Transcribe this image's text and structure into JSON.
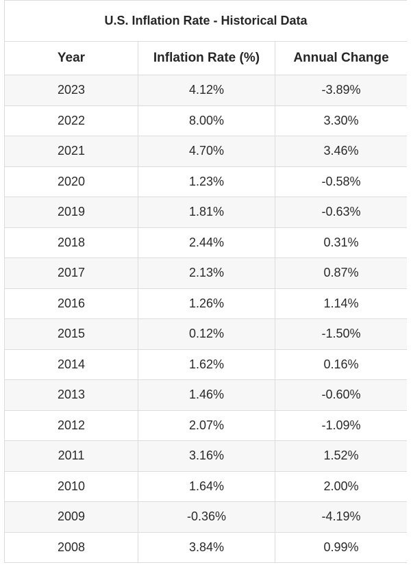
{
  "chart_data": {
    "type": "table",
    "title": "U.S. Inflation Rate - Historical Data",
    "columns": [
      "Year",
      "Inflation Rate (%)",
      "Annual Change"
    ],
    "rows": [
      [
        "2023",
        "4.12%",
        "-3.89%"
      ],
      [
        "2022",
        "8.00%",
        "3.30%"
      ],
      [
        "2021",
        "4.70%",
        "3.46%"
      ],
      [
        "2020",
        "1.23%",
        "-0.58%"
      ],
      [
        "2019",
        "1.81%",
        "-0.63%"
      ],
      [
        "2018",
        "2.44%",
        "0.31%"
      ],
      [
        "2017",
        "2.13%",
        "0.87%"
      ],
      [
        "2016",
        "1.26%",
        "1.14%"
      ],
      [
        "2015",
        "0.12%",
        "-1.50%"
      ],
      [
        "2014",
        "1.62%",
        "0.16%"
      ],
      [
        "2013",
        "1.46%",
        "-0.60%"
      ],
      [
        "2012",
        "2.07%",
        "-1.09%"
      ],
      [
        "2011",
        "3.16%",
        "1.52%"
      ],
      [
        "2010",
        "1.64%",
        "2.00%"
      ],
      [
        "2009",
        "-0.36%",
        "-4.19%"
      ],
      [
        "2008",
        "3.84%",
        "0.99%"
      ]
    ]
  }
}
